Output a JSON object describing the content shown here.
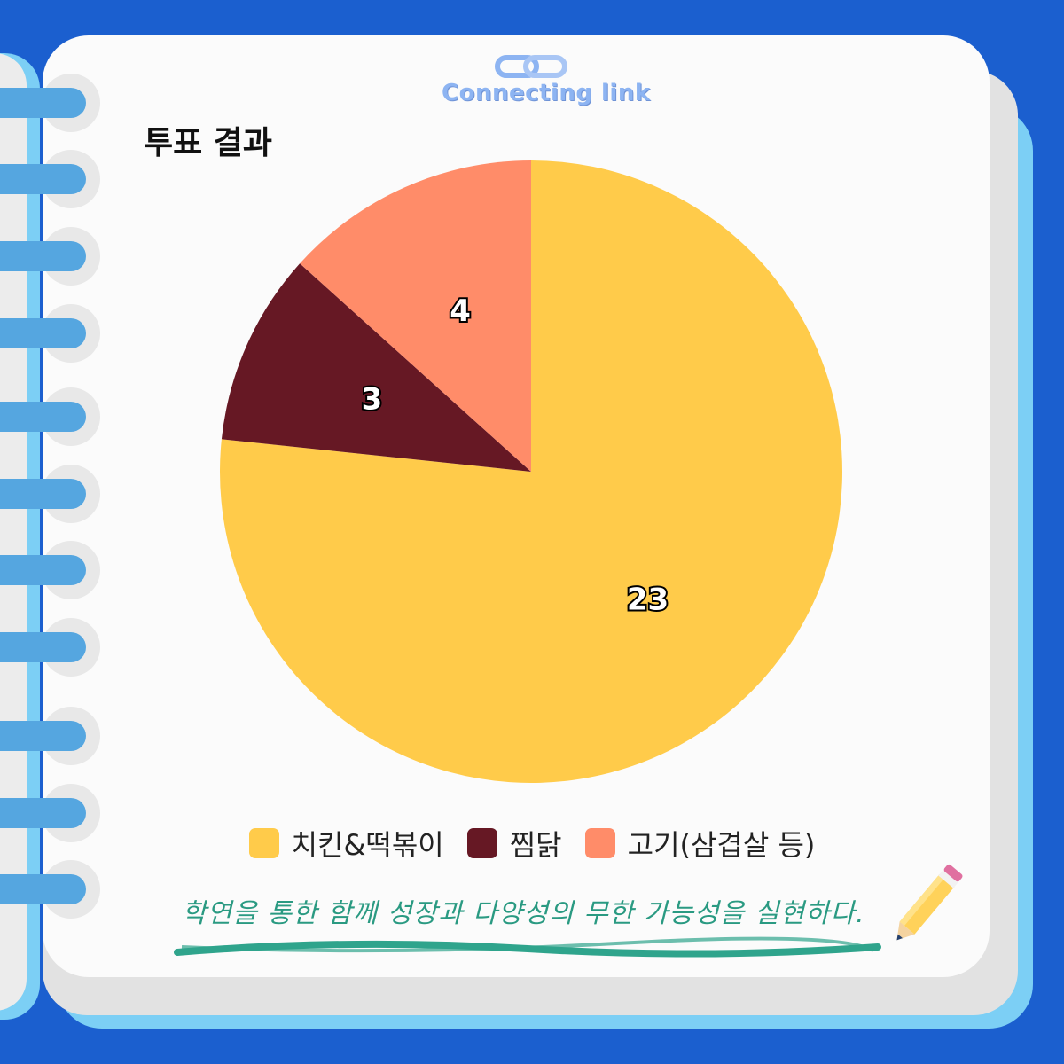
{
  "logo": {
    "text": "Connecting link",
    "icon": "chain-link-icon"
  },
  "chart_data": {
    "type": "pie",
    "title": "투표 결과",
    "categories": [
      "치킨&떡볶이",
      "찜닭",
      "고기(삼겹살 등)"
    ],
    "values": [
      23,
      3,
      4
    ],
    "colors": [
      "#ffcb4a",
      "#661824",
      "#ff8c69"
    ],
    "start_angle": "top, clockwise",
    "legend_placement": "bottom"
  },
  "footer": {
    "slogan": "학연을 통한 함께 성장과 다양성의 무한 가능성을 실현하다.",
    "icon": "pencil-icon"
  },
  "colors": {
    "background": "#1b5fcf",
    "page": "#fbfbfb",
    "slogan": "#2a9a82"
  }
}
